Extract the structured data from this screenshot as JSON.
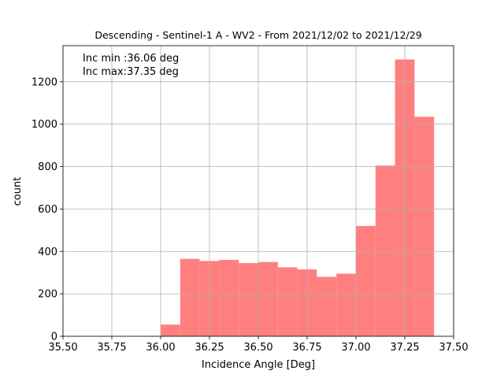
{
  "chart_data": {
    "type": "bar",
    "title": "Descending - Sentinel-1 A - WV2 - From 2021/12/02 to 2021/12/29",
    "xlabel": "Incidence Angle [Deg]",
    "ylabel": "count",
    "xlim": [
      35.5,
      37.5
    ],
    "ylim": [
      0,
      1370
    ],
    "grid": true,
    "bar_color": "#ff7f7f",
    "x_ticks": [
      "35.50",
      "35.75",
      "36.00",
      "36.25",
      "36.50",
      "36.75",
      "37.00",
      "37.25",
      "37.50"
    ],
    "y_ticks": [
      "0",
      "200",
      "400",
      "600",
      "800",
      "1000",
      "1200"
    ],
    "annotations": [
      "Inc min :36.06 deg",
      "Inc max:37.35 deg"
    ],
    "bins": [
      {
        "x0": 36.0,
        "x1": 36.1,
        "value": 55
      },
      {
        "x0": 36.1,
        "x1": 36.2,
        "value": 365
      },
      {
        "x0": 36.2,
        "x1": 36.3,
        "value": 355
      },
      {
        "x0": 36.3,
        "x1": 36.4,
        "value": 360
      },
      {
        "x0": 36.4,
        "x1": 36.5,
        "value": 345
      },
      {
        "x0": 36.5,
        "x1": 36.6,
        "value": 350
      },
      {
        "x0": 36.6,
        "x1": 36.7,
        "value": 325
      },
      {
        "x0": 36.7,
        "x1": 36.8,
        "value": 315
      },
      {
        "x0": 36.8,
        "x1": 36.9,
        "value": 280
      },
      {
        "x0": 36.9,
        "x1": 37.0,
        "value": 295
      },
      {
        "x0": 37.0,
        "x1": 37.1,
        "value": 520
      },
      {
        "x0": 37.1,
        "x1": 37.2,
        "value": 805
      },
      {
        "x0": 37.2,
        "x1": 37.3,
        "value": 1305
      },
      {
        "x0": 37.3,
        "x1": 37.4,
        "value": 1035
      }
    ]
  }
}
